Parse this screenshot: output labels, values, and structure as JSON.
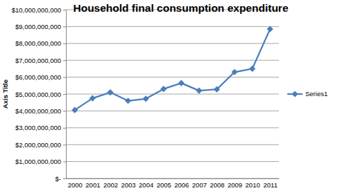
{
  "chart_data": {
    "type": "line",
    "title": "Household final consumption expenditure",
    "y_label": "Axis Title",
    "categories": [
      "2000",
      "2001",
      "2002",
      "2003",
      "2004",
      "2005",
      "2006",
      "2007",
      "2008",
      "2009",
      "2010",
      "2011"
    ],
    "series": [
      {
        "name": "Series1",
        "color": "#4a7ebb",
        "marker": "diamond",
        "values": [
          4050000000,
          4750000000,
          5100000000,
          4600000000,
          4720000000,
          5300000000,
          5650000000,
          5200000000,
          5280000000,
          6300000000,
          6500000000,
          8850000000
        ]
      }
    ],
    "ylim": [
      0,
      10000000000
    ],
    "yticks": [
      {
        "value": 0,
        "label": "$-"
      },
      {
        "value": 1000000000,
        "label": "$1,000,000,000"
      },
      {
        "value": 2000000000,
        "label": "$2,000,000,000"
      },
      {
        "value": 3000000000,
        "label": "$3,000,000,000"
      },
      {
        "value": 4000000000,
        "label": "$4,000,000,000"
      },
      {
        "value": 5000000000,
        "label": "$5,000,000,000"
      },
      {
        "value": 6000000000,
        "label": "$6,000,000,000"
      },
      {
        "value": 7000000000,
        "label": "$7,000,000,000"
      },
      {
        "value": 8000000000,
        "label": "$8,000,000,000"
      },
      {
        "value": 9000000000,
        "label": "$9,000,000,000"
      },
      {
        "value": 10000000000,
        "label": "$10,000,000,000"
      }
    ],
    "grid": true,
    "legend": "right"
  }
}
